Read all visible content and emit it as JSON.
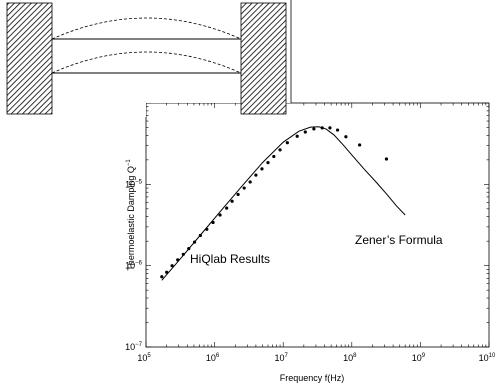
{
  "chart_data": {
    "type": "line",
    "title": "",
    "xlabel": "Frequency f(Hz)",
    "ylabel": "Thermoelastic Damping Q",
    "ylabel_exponent": "−1",
    "xscale": "log",
    "yscale": "log",
    "xlim": [
      100000,
      10000000000
    ],
    "ylim": [
      1e-07,
      0.0001
    ],
    "grid": false,
    "x_ticks": [
      {
        "base": "10",
        "exp": "5"
      },
      {
        "base": "10",
        "exp": "6"
      },
      {
        "base": "10",
        "exp": "7"
      },
      {
        "base": "10",
        "exp": "8"
      },
      {
        "base": "10",
        "exp": "9"
      },
      {
        "base": "10",
        "exp": "10"
      }
    ],
    "y_ticks": [
      {
        "base": "10",
        "exp": "−7"
      },
      {
        "base": "10",
        "exp": "−6"
      },
      {
        "base": "10",
        "exp": "−5"
      }
    ],
    "series": [
      {
        "name": "Zener's Formula",
        "style": "line",
        "color": "#000000",
        "x": [
          170000,
          300000,
          600000,
          1200000,
          2500000,
          5000000,
          10000000,
          17000000,
          25000000,
          33000000,
          42000000,
          55000000,
          75000000,
          100000000,
          150000000,
          230000000,
          330000000,
          450000000,
          600000000
        ],
        "y": [
          6.6e-07,
          1.15e-06,
          2.3e-06,
          4.6e-06,
          9.5e-06,
          1.85e-05,
          3.3e-05,
          4.5e-05,
          5.05e-05,
          5.1e-05,
          4.8e-05,
          4.05e-05,
          3.05e-05,
          2.3e-05,
          1.55e-05,
          1.05e-05,
          7.4e-06,
          5.4e-06,
          4.2e-06
        ]
      },
      {
        "name": "HiQlab Results",
        "style": "markers",
        "color": "#000000",
        "x": [
          170000,
          200000,
          240000,
          290000,
          350000,
          420000,
          510000,
          620000,
          770000,
          950000,
          1200000,
          1500000,
          1800000,
          2200000,
          2700000,
          3300000,
          4000000,
          4900000,
          6000000,
          7300000,
          9000000,
          11500000,
          16000000,
          21000000,
          28000000,
          37000000,
          48000000,
          62000000,
          82000000,
          130000000,
          320000000
        ],
        "y": [
          7.3e-07,
          8.3e-07,
          1e-06,
          1.18e-06,
          1.38e-06,
          1.62e-06,
          1.95e-06,
          2.35e-06,
          2.8e-06,
          3.4e-06,
          4.2e-06,
          5.1e-06,
          6.2e-06,
          7.5e-06,
          9e-06,
          1.07e-05,
          1.3e-05,
          1.55e-05,
          1.85e-05,
          2.2e-05,
          2.65e-05,
          3.25e-05,
          3.9e-05,
          4.4e-05,
          4.8e-05,
          4.95e-05,
          4.95e-05,
          4.65e-05,
          3.85e-05,
          3.05e-05,
          2.05e-05
        ]
      }
    ],
    "annotations": [
      {
        "text": "Zener’s Formula"
      },
      {
        "text": "HiQlab Results"
      }
    ]
  },
  "inset": {
    "type": "schematic",
    "description_hidden": true
  }
}
